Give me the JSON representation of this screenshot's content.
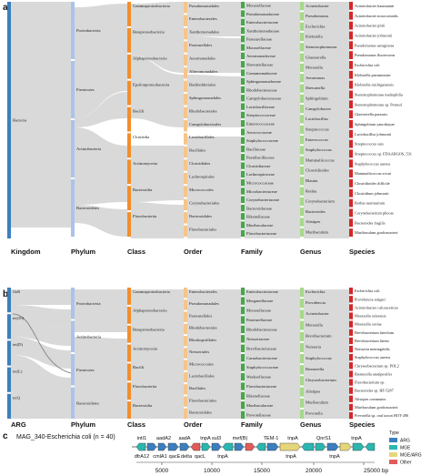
{
  "panels": {
    "a": "a",
    "b": "b",
    "c": "c"
  },
  "colors": {
    "kingdom": "#3b7fbf",
    "phylum": "#a9c4e8",
    "class": "#f28e2b",
    "order": "#f7c48a",
    "family": "#45a845",
    "genus": "#a6d88a",
    "species": "#d62728",
    "arg": "#3b7fbf",
    "mge": "#2ab7b0",
    "argmge": "#e6d67a",
    "other": "#e25b5b"
  },
  "panel_a": {
    "axis_labels": [
      "Kingdom",
      "Phylum",
      "Class",
      "Order",
      "Family",
      "Genus",
      "Species"
    ],
    "kingdom": [
      "Bacteria"
    ],
    "phylum": [
      "Proteobacteria",
      "Firmicutes",
      "Actinobacteria",
      "Bacteroidetes"
    ],
    "class": [
      "Gammaproteobacteria",
      "Betaproteobacteria",
      "Alphaproteobacteria",
      "Epsilonproteobacteria",
      "Bacilli",
      "Clostridia",
      "Actinomycetia",
      "Bacteroidia",
      "Flavobacteriia"
    ],
    "order": [
      "Pseudomonadales",
      "Enterobacterales",
      "Xanthomonadales",
      "Pasteurellales",
      "Aeromonadales",
      "Alteromonadales",
      "Burkholderiales",
      "Sphingomonadales",
      "Rhodobacterales",
      "Campylobacterales",
      "Lactobacillales",
      "Bacillales",
      "Clostridiales",
      "Lachnospirales",
      "Micrococcales",
      "Corynebacteriales",
      "Bacteroidales",
      "Flavobacteriales"
    ],
    "family": [
      "Moraxellaceae",
      "Pseudomonadaceae",
      "Enterobacteriaceae",
      "Xanthomonadaceae",
      "Pasteurellaceae",
      "Moraxellaceae",
      "Aeromonadaceae",
      "Shewanellaceae",
      "Comamonadaceae",
      "Sphingomonadaceae",
      "Rhodobacteraceae",
      "Campylobacteraceae",
      "Lactobacillaceae",
      "Streptococcaceae",
      "Enterococcaceae",
      "Aerococcaceae",
      "Staphylococcaceae",
      "Bacillaceae",
      "Paenibacillaceae",
      "Clostridiaceae",
      "Lachnospiraceae",
      "Micrococcaceae",
      "Microbacteriaceae",
      "Corynebacteriaceae",
      "Bacteroidaceae",
      "Rikenellaceae",
      "Muribaculaceae",
      "Flavobacteriaceae"
    ],
    "genus": [
      "Acinetobacter",
      "Pseudomonas",
      "Escherichia",
      "Klebsiella",
      "Stenotrophomonas",
      "Glaesserella",
      "Moraxella",
      "Aeromonas",
      "Shewanella",
      "Sphingobium",
      "Campylobacter",
      "Lactobacillus",
      "Streptococcus",
      "Enterococcus",
      "Staphylococcus",
      "Mammaliicoccus",
      "Clostridioides",
      "Blautia",
      "Rothia",
      "Corynebacterium",
      "Bacteroides",
      "Alistipes",
      "Muribaculum"
    ],
    "species": [
      "Acinetobacter baumannii",
      "Acinetobacter nosocomialis",
      "Acinetobacter pittii",
      "Acinetobacter johnsonii",
      "Pseudomonas aeruginosa",
      "Pseudomonas fluorescens",
      "Escherichia coli",
      "Klebsiella pneumoniae",
      "Klebsiella michiganensis",
      "Stenotrophomonas maltophilia",
      "Stenotrophomonas sp. Pemsol",
      "Glaesserella parasuis",
      "Sphingobium yanoikuyae",
      "Lactobacillus johnsonii",
      "Streptococcus suis",
      "Streptococcus sp. FDAARGOS_531",
      "Staphylococcus aureus",
      "Mammaliicoccus sciuri",
      "Clostridioides difficile",
      "Clostridium johnsonii",
      "Rothia nasimurium",
      "Corynebacterium phocae",
      "Bacteroides fragilis",
      "Muribaculum gordoncarteri"
    ]
  },
  "panel_b": {
    "axis_labels": [
      "ARG",
      "Phylum",
      "Class",
      "Order",
      "Family",
      "Genus",
      "Species"
    ],
    "arg": [
      "floR",
      "tet(39)",
      "tet(D)",
      "tet(L)",
      "tetQ"
    ],
    "phylum": [
      "Proteobacteria",
      "Actinobacteria",
      "Firmicutes",
      "Bacteroidetes"
    ],
    "class": [
      "Gammaproteobacteria",
      "Alphaproteobacteria",
      "Betaproteobacteria",
      "Actinomycetia",
      "Bacilli",
      "Flavobacteriia",
      "Bacteroidia"
    ],
    "order": [
      "Enterobacterales",
      "Pseudomonadales",
      "Pasteurellales",
      "Rhodobacterales",
      "Rhodospirillales",
      "Neisseriales",
      "Micrococcales",
      "Lactobacillales",
      "Bacillales",
      "Flavobacteriales",
      "Bacteroidales"
    ],
    "family": [
      "Enterobacteriaceae",
      "Morganellaceae",
      "Moraxellaceae",
      "Pasteurellaceae",
      "Rhodobacteraceae",
      "Neisseriaceae",
      "Brevibacteriaceae",
      "Carnobacteriaceae",
      "Staphylococcaceae",
      "Weeksellaceae",
      "Flavobacteriaceae",
      "Rikenellaceae",
      "Muribaculaceae",
      "Prevotellaceae"
    ],
    "genus": [
      "Escherichia",
      "Providencia",
      "Acinetobacter",
      "Moraxella",
      "Brevibacterium",
      "Neisseria",
      "Staphylococcus",
      "Riemerella",
      "Chryseobacterium",
      "Alistipes",
      "Muribaculum",
      "Prevotella"
    ],
    "species": [
      "Escherichia coli",
      "Providencia rettgeri",
      "Acinetobacter calcoaceticus",
      "Moraxella osloensis",
      "Moraxella caviae",
      "Brevibacterium luteolum",
      "Brevibacterium linens",
      "Neisseria meningitidis",
      "Staphylococcus aureus",
      "Chryseobacterium sp. POL2",
      "Riemerella anatipestifer",
      "Flavobacterium sp.",
      "Bacteroides sp. HF-5287",
      "Alistipes communis",
      "Muribaculum gordoncarteri",
      "Prevotella sp. oral taxon HOT-286"
    ]
  },
  "panel_c": {
    "title": "MAG_340-Escherichia coli (n = 40)",
    "genes_top": [
      "intI1",
      "aadA2",
      "aadA",
      "tnpA",
      "sul3",
      "mef(B)",
      "TEM-1",
      "tnpA",
      "QnrS1",
      "tnpA"
    ],
    "genes_bottom": [
      "dfrA12",
      "cmlA1",
      "qacE",
      "delta",
      "qacL",
      "tnpA",
      "tnpA",
      "tnpA"
    ],
    "axis_ticks": [
      "5000",
      "10000",
      "15000",
      "20000",
      "25000 bp"
    ],
    "legend_title": "Type",
    "legend": [
      "ARG",
      "MGE",
      "MGE/ARG",
      "Other"
    ]
  }
}
